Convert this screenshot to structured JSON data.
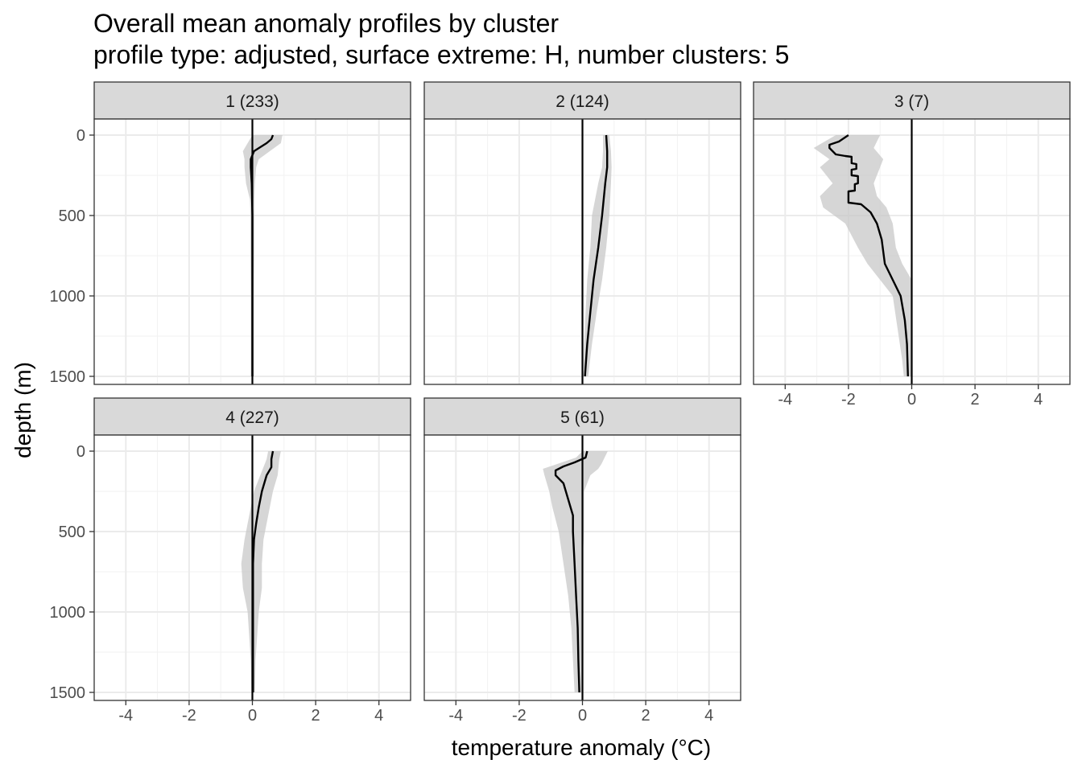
{
  "chart_data": {
    "type": "line",
    "title": "Overall mean anomaly profiles by cluster",
    "subtitle": "profile type: adjusted, surface extreme: H, number clusters: 5",
    "xlabel": "temperature anomaly (°C)",
    "ylabel": "depth (m)",
    "xlim": [
      -5,
      5
    ],
    "ylim": [
      1550,
      -100
    ],
    "x_ticks": [
      -4,
      -2,
      0,
      2,
      4
    ],
    "x_tick_labels": [
      "-4",
      "-2",
      "0",
      "2",
      "4"
    ],
    "y_ticks": [
      0,
      500,
      1000,
      1500
    ],
    "y_tick_labels": [
      "0",
      "500",
      "1000",
      "1500"
    ],
    "reference_line_x": 0,
    "grid": true,
    "panels": [
      {
        "label": "1 (233)",
        "line": [
          [
            0.65,
            0
          ],
          [
            0.6,
            25
          ],
          [
            0.45,
            50
          ],
          [
            0.25,
            75
          ],
          [
            0.05,
            100
          ],
          [
            -0.05,
            150
          ],
          [
            -0.05,
            200
          ],
          [
            -0.02,
            300
          ],
          [
            0,
            500
          ],
          [
            0,
            700
          ],
          [
            0,
            1000
          ],
          [
            0,
            1300
          ],
          [
            0,
            1500
          ]
        ],
        "ribbon": [
          [
            0,
            0.95,
            0
          ],
          [
            -0.15,
            0.9,
            50
          ],
          [
            -0.3,
            0.55,
            100
          ],
          [
            -0.25,
            0.2,
            150
          ],
          [
            -0.25,
            0.12,
            200
          ],
          [
            -0.2,
            0.08,
            300
          ],
          [
            -0.08,
            0.06,
            400
          ],
          [
            -0.06,
            0.06,
            500
          ],
          [
            -0.06,
            0.06,
            700
          ],
          [
            -0.05,
            0.05,
            1000
          ],
          [
            -0.05,
            0.05,
            1300
          ],
          [
            -0.05,
            0.05,
            1500
          ]
        ]
      },
      {
        "label": "2 (124)",
        "line": [
          [
            0.75,
            0
          ],
          [
            0.78,
            100
          ],
          [
            0.78,
            200
          ],
          [
            0.72,
            300
          ],
          [
            0.62,
            500
          ],
          [
            0.5,
            700
          ],
          [
            0.35,
            900
          ],
          [
            0.25,
            1100
          ],
          [
            0.15,
            1300
          ],
          [
            0.08,
            1500
          ]
        ],
        "ribbon": [
          [
            0.65,
            0.85,
            0
          ],
          [
            0.65,
            0.9,
            100
          ],
          [
            0.62,
            0.92,
            200
          ],
          [
            0.5,
            0.9,
            300
          ],
          [
            0.3,
            0.85,
            500
          ],
          [
            0.25,
            0.75,
            700
          ],
          [
            0.15,
            0.62,
            900
          ],
          [
            0.1,
            0.45,
            1100
          ],
          [
            0.05,
            0.3,
            1300
          ],
          [
            0.03,
            0.18,
            1500
          ]
        ]
      },
      {
        "label": "3 (7)",
        "line": [
          [
            -2,
            0
          ],
          [
            -2.3,
            40
          ],
          [
            -2.6,
            60
          ],
          [
            -2.6,
            80
          ],
          [
            -2.4,
            120
          ],
          [
            -2.1,
            130
          ],
          [
            -1.9,
            135
          ],
          [
            -1.9,
            175
          ],
          [
            -1.75,
            180
          ],
          [
            -1.75,
            210
          ],
          [
            -1.9,
            215
          ],
          [
            -1.9,
            250
          ],
          [
            -1.7,
            255
          ],
          [
            -1.7,
            300
          ],
          [
            -1.8,
            305
          ],
          [
            -1.8,
            345
          ],
          [
            -2,
            350
          ],
          [
            -2,
            420
          ],
          [
            -1.6,
            430
          ],
          [
            -1.3,
            480
          ],
          [
            -1.1,
            550
          ],
          [
            -0.95,
            650
          ],
          [
            -0.85,
            800
          ],
          [
            -0.6,
            900
          ],
          [
            -0.35,
            1000
          ],
          [
            -0.22,
            1150
          ],
          [
            -0.15,
            1300
          ],
          [
            -0.12,
            1500
          ]
        ],
        "ribbon": [
          [
            -2.4,
            -1,
            0
          ],
          [
            -3.1,
            -1.2,
            80
          ],
          [
            -2.6,
            -0.9,
            150
          ],
          [
            -2.9,
            -1,
            200
          ],
          [
            -2.5,
            -1.2,
            300
          ],
          [
            -2.9,
            -1.1,
            380
          ],
          [
            -2.8,
            -0.8,
            450
          ],
          [
            -2.1,
            -0.6,
            550
          ],
          [
            -1.7,
            -0.5,
            700
          ],
          [
            -1.4,
            -0.3,
            800
          ],
          [
            -1,
            0,
            900
          ],
          [
            -0.6,
            0,
            1000
          ],
          [
            -0.45,
            0,
            1200
          ],
          [
            -0.3,
            0,
            1400
          ],
          [
            -0.25,
            0,
            1500
          ]
        ]
      },
      {
        "label": "4 (227)",
        "line": [
          [
            0.65,
            0
          ],
          [
            0.6,
            50
          ],
          [
            0.6,
            100
          ],
          [
            0.45,
            150
          ],
          [
            0.3,
            250
          ],
          [
            0.2,
            350
          ],
          [
            0.12,
            450
          ],
          [
            0.05,
            550
          ],
          [
            0.02,
            700
          ],
          [
            0.02,
            1000
          ],
          [
            0.02,
            1300
          ],
          [
            0.02,
            1500
          ]
        ],
        "ribbon": [
          [
            0.5,
            0.9,
            0
          ],
          [
            0.45,
            0.85,
            50
          ],
          [
            0.25,
            0.8,
            150
          ],
          [
            0.05,
            0.65,
            250
          ],
          [
            -0.05,
            0.55,
            350
          ],
          [
            -0.25,
            0.35,
            550
          ],
          [
            -0.35,
            0.3,
            700
          ],
          [
            -0.3,
            0.3,
            850
          ],
          [
            -0.15,
            0.2,
            1000
          ],
          [
            -0.05,
            0.1,
            1300
          ],
          [
            -0.03,
            0.08,
            1500
          ]
        ]
      },
      {
        "label": "5 (61)",
        "line": [
          [
            0.15,
            0
          ],
          [
            0.1,
            40
          ],
          [
            -0.25,
            70
          ],
          [
            -0.6,
            95
          ],
          [
            -0.85,
            120
          ],
          [
            -0.85,
            150
          ],
          [
            -0.6,
            200
          ],
          [
            -0.45,
            300
          ],
          [
            -0.3,
            400
          ],
          [
            -0.3,
            500
          ],
          [
            -0.25,
            700
          ],
          [
            -0.2,
            900
          ],
          [
            -0.15,
            1100
          ],
          [
            -0.13,
            1300
          ],
          [
            -0.1,
            1500
          ]
        ],
        "ribbon": [
          [
            0.0,
            0.8,
            0
          ],
          [
            -0.2,
            0.7,
            40
          ],
          [
            -0.8,
            0.6,
            80
          ],
          [
            -1.25,
            0.5,
            110
          ],
          [
            -1.2,
            0.25,
            150
          ],
          [
            -1.05,
            0.05,
            250
          ],
          [
            -0.95,
            0.05,
            350
          ],
          [
            -0.75,
            0.05,
            500
          ],
          [
            -0.6,
            0.0,
            700
          ],
          [
            -0.45,
            -0.02,
            900
          ],
          [
            -0.35,
            -0.02,
            1100
          ],
          [
            -0.3,
            -0.02,
            1300
          ],
          [
            -0.25,
            -0.02,
            1500
          ]
        ]
      }
    ]
  }
}
